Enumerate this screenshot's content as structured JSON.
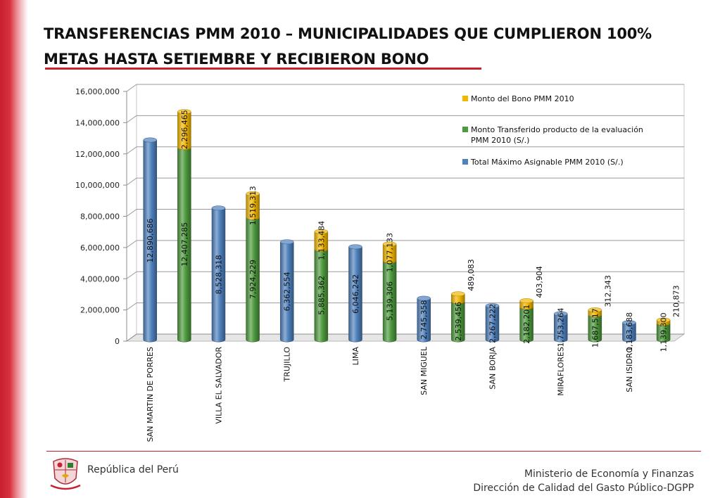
{
  "slide": {
    "title": "TRANSFERENCIAS PMM 2010 – MUNICIPALIDADES QUE CUMPLIERON 100% METAS HASTA SETIEMBRE Y RECIBIERON BONO"
  },
  "colors": {
    "total": "#4f81bd",
    "transferido": "#4e9a3e",
    "bono": "#f2b600",
    "brand_red": "#c8202f"
  },
  "chart_data": {
    "type": "bar",
    "title": "",
    "xlabel": "",
    "ylabel": "",
    "ylim": [
      0,
      16000000
    ],
    "yticks": [
      "0",
      "2,000,000",
      "4,000,000",
      "6,000,000",
      "8,000,000",
      "10,000,000",
      "12,000,000",
      "14,000,000",
      "16,000,000"
    ],
    "grid": true,
    "legend_position": "top-right",
    "categories": [
      "SAN MARTIN DE PORRES",
      "VILLA EL SALVADOR",
      "TRUJILLO",
      "LIMA",
      "SAN MIGUEL",
      "SAN BORJA",
      "MIRAFLORES",
      "SAN ISIDRO"
    ],
    "total_series": {
      "name": "Total Máximo Asignable PMM 2010 (S/.)",
      "values": [
        12890686,
        8528318,
        6362554,
        6046242,
        2745358,
        2267222,
        1753264,
        1183688
      ],
      "labels": [
        "12,890,686",
        "8,528,318",
        "6,362,554",
        "6,046,242",
        "2,745,358",
        "2,267,222",
        "1,753,264",
        "1,183,688"
      ]
    },
    "stacked_series": [
      {
        "name": "Monto Transferido producto de la evaluación PMM 2010 (S/.)",
        "values": [
          12407285,
          7924229,
          5885362,
          5139306,
          2539456,
          2182201,
          1687517,
          1139300
        ],
        "labels": [
          "12,407,285",
          "7,924,229",
          "5,885,362",
          "5,139,306",
          "2,539,456",
          "2,182,201",
          "1,687,517",
          "1,139,300"
        ]
      },
      {
        "name": "Monto del Bono PMM 2010",
        "values": [
          2296465,
          1519313,
          1133484,
          1077133,
          489083,
          403904,
          312343,
          210873
        ],
        "labels": [
          "2,296,465",
          "1,519,313",
          "1,133,484",
          "1,077,133",
          "489,083",
          "403,904",
          "312,343",
          "210,873"
        ]
      }
    ]
  },
  "footer": {
    "country": "República del Perú",
    "ministry": "Ministerio de Economía y Finanzas",
    "directorate": "Dirección de Calidad del Gasto Público-DGPP"
  }
}
